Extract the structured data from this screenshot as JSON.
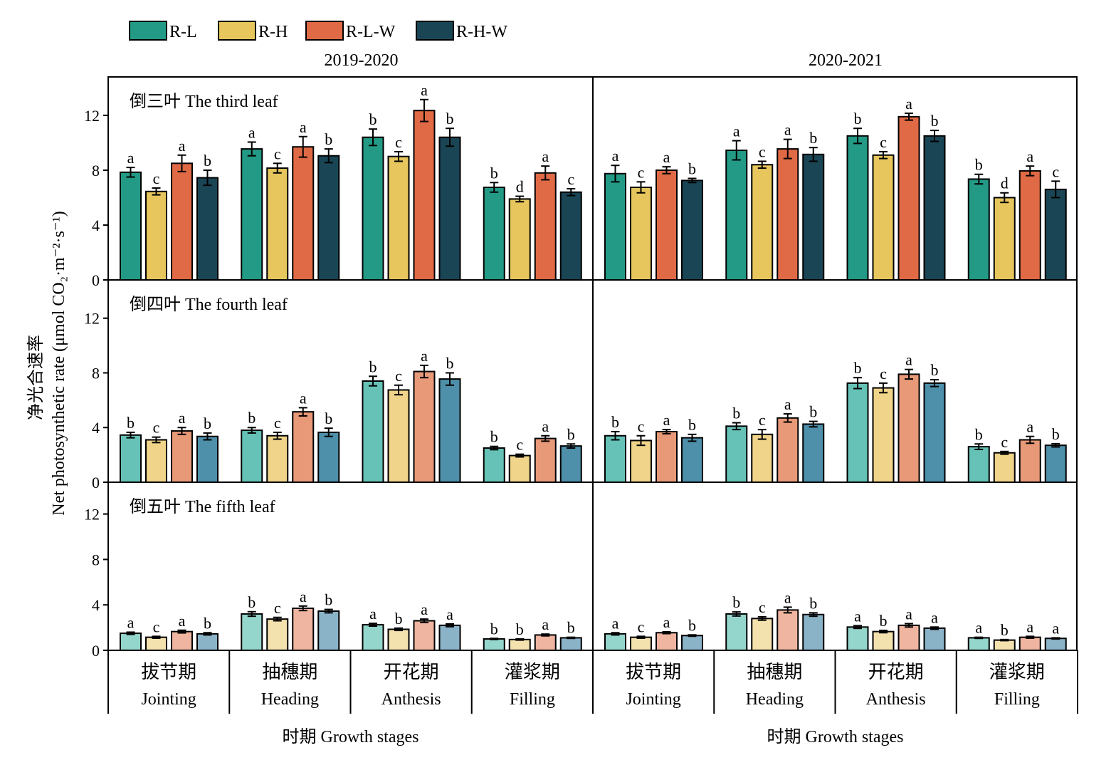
{
  "chart_data": {
    "type": "bar",
    "ylabel_cn": "净光合速率",
    "ylabel_en": "Net photosynthetic rate (μmol CO₂·m⁻²·s⁻¹)",
    "xlabel": "时期 Growth stages",
    "yticks": [
      0,
      4,
      8,
      12
    ],
    "ylim": [
      0,
      14.8
    ],
    "legend_position": "top-left",
    "series_names": [
      "R-L",
      "R-H",
      "R-L-W",
      "R-H-W"
    ],
    "colors": {
      "third": [
        "#239A85",
        "#E6C65D",
        "#E06A45",
        "#1A4555"
      ],
      "fourth": [
        "#66C2B6",
        "#EFD48A",
        "#E89978",
        "#4E8FAA"
      ],
      "fifth": [
        "#95D6CC",
        "#F4E2AE",
        "#EFB5A0",
        "#8BB3C8"
      ]
    },
    "years": [
      "2019-2020",
      "2020-2021"
    ],
    "stages": [
      {
        "cn": "拔节期",
        "en": "Jointing"
      },
      {
        "cn": "抽穗期",
        "en": "Heading"
      },
      {
        "cn": "开花期",
        "en": "Anthesis"
      },
      {
        "cn": "灌浆期",
        "en": "Filling"
      }
    ],
    "panels": [
      {
        "key": "third",
        "title": "倒三叶 The third leaf",
        "data": [
          [
            {
              "values": [
                7.85,
                6.45,
                8.5,
                7.45
              ],
              "errors": [
                0.35,
                0.25,
                0.6,
                0.55
              ],
              "letters": [
                "a",
                "c",
                "a",
                "b"
              ]
            },
            {
              "values": [
                9.55,
                8.15,
                9.7,
                9.05
              ],
              "errors": [
                0.5,
                0.35,
                0.75,
                0.5
              ],
              "letters": [
                "a",
                "c",
                "a",
                "b"
              ]
            },
            {
              "values": [
                10.4,
                9.0,
                12.35,
                10.4
              ],
              "errors": [
                0.6,
                0.35,
                0.8,
                0.65
              ],
              "letters": [
                "b",
                "c",
                "a",
                "b"
              ]
            },
            {
              "values": [
                6.75,
                5.9,
                7.8,
                6.4
              ],
              "errors": [
                0.35,
                0.2,
                0.5,
                0.25
              ],
              "letters": [
                "b",
                "d",
                "a",
                "c"
              ]
            }
          ],
          [
            {
              "values": [
                7.75,
                6.75,
                8.0,
                7.25
              ],
              "errors": [
                0.6,
                0.4,
                0.25,
                0.15
              ],
              "letters": [
                "a",
                "c",
                "a",
                "b"
              ]
            },
            {
              "values": [
                9.45,
                8.4,
                9.55,
                9.15
              ],
              "errors": [
                0.7,
                0.25,
                0.7,
                0.5
              ],
              "letters": [
                "a",
                "c",
                "a",
                "b"
              ]
            },
            {
              "values": [
                10.5,
                9.1,
                11.9,
                10.5
              ],
              "errors": [
                0.55,
                0.25,
                0.25,
                0.4
              ],
              "letters": [
                "b",
                "c",
                "a",
                "b"
              ]
            },
            {
              "values": [
                7.35,
                6.0,
                7.95,
                6.6
              ],
              "errors": [
                0.35,
                0.35,
                0.35,
                0.6
              ],
              "letters": [
                "b",
                "d",
                "a",
                "c"
              ]
            }
          ]
        ]
      },
      {
        "key": "fourth",
        "title": "倒四叶 The fourth leaf",
        "data": [
          [
            {
              "values": [
                3.45,
                3.1,
                3.75,
                3.35
              ],
              "errors": [
                0.2,
                0.2,
                0.25,
                0.25
              ],
              "letters": [
                "b",
                "c",
                "a",
                "b"
              ]
            },
            {
              "values": [
                3.8,
                3.4,
                5.15,
                3.65
              ],
              "errors": [
                0.2,
                0.25,
                0.3,
                0.3
              ],
              "letters": [
                "b",
                "c",
                "a",
                "b"
              ]
            },
            {
              "values": [
                7.4,
                6.75,
                8.1,
                7.55
              ],
              "errors": [
                0.35,
                0.35,
                0.45,
                0.45
              ],
              "letters": [
                "b",
                "c",
                "a",
                "b"
              ]
            },
            {
              "values": [
                2.5,
                1.95,
                3.2,
                2.65
              ],
              "errors": [
                0.12,
                0.1,
                0.2,
                0.15
              ],
              "letters": [
                "b",
                "c",
                "a",
                "b"
              ]
            }
          ],
          [
            {
              "values": [
                3.4,
                3.05,
                3.7,
                3.25
              ],
              "errors": [
                0.3,
                0.35,
                0.15,
                0.25
              ],
              "letters": [
                "b",
                "c",
                "a",
                "b"
              ]
            },
            {
              "values": [
                4.1,
                3.5,
                4.7,
                4.25
              ],
              "errors": [
                0.25,
                0.35,
                0.3,
                0.2
              ],
              "letters": [
                "b",
                "c",
                "a",
                "b"
              ]
            },
            {
              "values": [
                7.25,
                6.9,
                7.9,
                7.25
              ],
              "errors": [
                0.4,
                0.35,
                0.35,
                0.25
              ],
              "letters": [
                "b",
                "c",
                "a",
                "b"
              ]
            },
            {
              "values": [
                2.6,
                2.15,
                3.1,
                2.7
              ],
              "errors": [
                0.2,
                0.1,
                0.25,
                0.12
              ],
              "letters": [
                "b",
                "c",
                "a",
                "b"
              ]
            }
          ]
        ]
      },
      {
        "key": "fifth",
        "title": "倒五叶 The fifth leaf",
        "data": [
          [
            {
              "values": [
                1.5,
                1.15,
                1.65,
                1.45
              ],
              "errors": [
                0.1,
                0.08,
                0.12,
                0.1
              ],
              "letters": [
                "a",
                "c",
                "a",
                "b"
              ]
            },
            {
              "values": [
                3.2,
                2.75,
                3.7,
                3.45
              ],
              "errors": [
                0.2,
                0.15,
                0.2,
                0.15
              ],
              "letters": [
                "b",
                "c",
                "a",
                "b"
              ]
            },
            {
              "values": [
                2.25,
                1.85,
                2.6,
                2.2
              ],
              "errors": [
                0.12,
                0.1,
                0.15,
                0.12
              ],
              "letters": [
                "a",
                "b",
                "a",
                "a"
              ]
            },
            {
              "values": [
                1.0,
                0.95,
                1.35,
                1.1
              ],
              "errors": [
                0.05,
                0.05,
                0.08,
                0.05
              ],
              "letters": [
                "b",
                "b",
                "a",
                "b"
              ]
            }
          ],
          [
            {
              "values": [
                1.45,
                1.15,
                1.55,
                1.3
              ],
              "errors": [
                0.1,
                0.08,
                0.08,
                0.06
              ],
              "letters": [
                "a",
                "c",
                "a",
                "b"
              ]
            },
            {
              "values": [
                3.2,
                2.8,
                3.55,
                3.15
              ],
              "errors": [
                0.18,
                0.15,
                0.25,
                0.15
              ],
              "letters": [
                "b",
                "c",
                "a",
                "b"
              ]
            },
            {
              "values": [
                2.05,
                1.65,
                2.2,
                1.95
              ],
              "errors": [
                0.12,
                0.1,
                0.15,
                0.1
              ],
              "letters": [
                "a",
                "b",
                "a",
                "a"
              ]
            },
            {
              "values": [
                1.1,
                0.9,
                1.15,
                1.05
              ],
              "errors": [
                0.05,
                0.05,
                0.08,
                0.05
              ],
              "letters": [
                "a",
                "b",
                "a",
                "a"
              ]
            }
          ]
        ]
      }
    ]
  }
}
